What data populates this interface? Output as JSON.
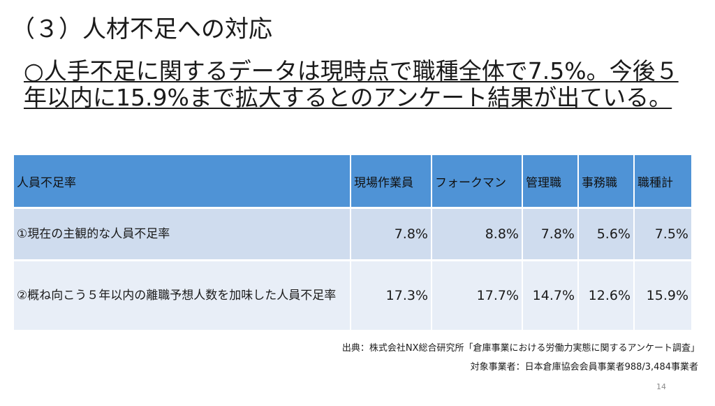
{
  "title": "（３）人材不足への対応",
  "lead": "○人手不足に関するデータは現時点で職種全体で7.5%。今後５年以内に15.9%まで拡大するとのアンケート結果が出ている。",
  "table": {
    "headers": [
      "人員不足率",
      "現場作業員",
      "フォークマン",
      "管理職",
      "事務職",
      "職種計"
    ],
    "rows": [
      {
        "label": "①現在の主観的な人員不足率",
        "values": [
          "7.8%",
          "8.8%",
          "7.8%",
          "5.6%",
          "7.5%"
        ]
      },
      {
        "label": "②概ね向こう５年以内の離職予想人数を加味した人員不足率",
        "values": [
          "17.3%",
          "17.7%",
          "14.7%",
          "12.6%",
          "15.9%"
        ]
      }
    ]
  },
  "source": "出典：株式会社NX総合研究所「倉庫事業における労働力実態に関するアンケート調査」",
  "subjects": "対象事業者：日本倉庫協会会員事業者988/3,484事業者",
  "page_number": "14"
}
